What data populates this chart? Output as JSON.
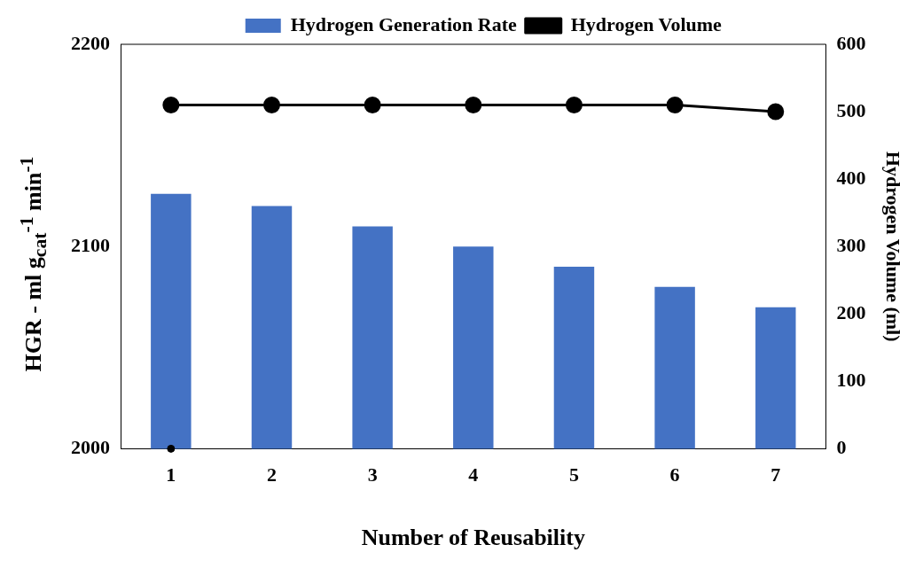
{
  "chart_data": {
    "type": "bar",
    "xlabel": "Number of Reusability",
    "ylabel": "HGR - ml g$_{cat}$$^{-1}$ min$^{-1}$",
    "y2label": "Hydrogen Volume (ml)",
    "categories": [
      "1",
      "2",
      "3",
      "4",
      "5",
      "6",
      "7"
    ],
    "series": [
      {
        "name": "Hydrogen Generation Rate",
        "color": "#4472c4",
        "values": [
          2126,
          2120,
          2110,
          2100,
          2090,
          2080,
          2070
        ]
      },
      {
        "name": "Hydrogen Volume",
        "type": "line",
        "axis": "y2",
        "color": "#000000",
        "marker": "circle",
        "values": [
          510,
          510,
          510,
          510,
          510,
          510,
          500
        ]
      },
      {
        "type": "scatter",
        "axis": "y2",
        "color": "#000000",
        "marker": "circle",
        "x": [
          "1"
        ],
        "values": [
          0
        ]
      }
    ],
    "ylim": [
      2000,
      2200
    ],
    "yticks": [
      2000,
      2100,
      2200
    ],
    "y2lim": [
      0,
      600
    ],
    "y2ticks": [
      0,
      100,
      200,
      300,
      400,
      500,
      600
    ],
    "grid": false,
    "legend": "top"
  }
}
